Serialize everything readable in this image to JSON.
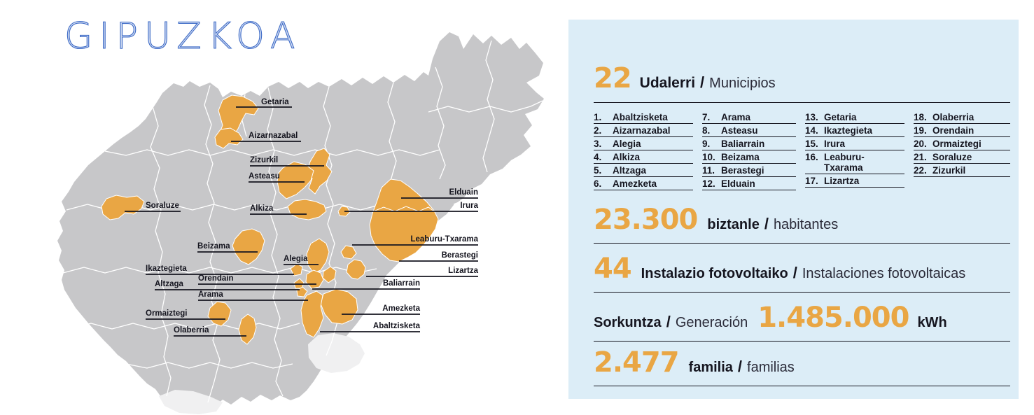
{
  "title": "GIPUZKOA",
  "colors": {
    "accent_orange": "#E9A644",
    "panel_blue": "#DCEDF7",
    "map_gray": "#C7C7C9",
    "map_light_gray": "#F0F0F1",
    "text_dark": "#15151F",
    "title_blue": "#3F6CC7"
  },
  "map": {
    "region_labels": [
      "Getaria",
      "Aizarnazabal",
      "Zizurkil",
      "Asteasu",
      "Soraluze",
      "Alkiza",
      "Beizama",
      "Elduain",
      "Irura",
      "Leaburu-Txarama",
      "Berastegi",
      "Lizartza",
      "Baliarrain",
      "Amezketa",
      "Abaltzisketa",
      "Alegia",
      "Ikaztegieta",
      "Orendain",
      "Altzaga",
      "Arama",
      "Ormaiztegi",
      "Olaberria"
    ]
  },
  "panel": {
    "slash": "/",
    "header": {
      "count": "22",
      "label_eu": "Udalerri",
      "label_es": "Municipios"
    },
    "municipalities": [
      {
        "num": "1.",
        "name": "Abaltzisketa"
      },
      {
        "num": "2.",
        "name": "Aizarnazabal"
      },
      {
        "num": "3.",
        "name": "Alegia"
      },
      {
        "num": "4.",
        "name": "Alkiza"
      },
      {
        "num": "5.",
        "name": "Altzaga"
      },
      {
        "num": "6.",
        "name": "Amezketa"
      },
      {
        "num": "7.",
        "name": "Arama"
      },
      {
        "num": "8.",
        "name": "Asteasu"
      },
      {
        "num": "9.",
        "name": "Baliarrain"
      },
      {
        "num": "10.",
        "name": "Beizama"
      },
      {
        "num": "11.",
        "name": "Berastegi"
      },
      {
        "num": "12.",
        "name": "Elduain"
      },
      {
        "num": "13.",
        "name": "Getaria"
      },
      {
        "num": "14.",
        "name": "Ikaztegieta"
      },
      {
        "num": "15.",
        "name": "Irura"
      },
      {
        "num": "16.",
        "name": "Leaburu-\nTxarama"
      },
      {
        "num": "17.",
        "name": "Lizartza"
      },
      {
        "num": "18.",
        "name": "Olaberria"
      },
      {
        "num": "19.",
        "name": "Orendain"
      },
      {
        "num": "20.",
        "name": "Ormaiztegi"
      },
      {
        "num": "21.",
        "name": "Soraluze"
      },
      {
        "num": "22.",
        "name": "Zizurkil"
      }
    ],
    "stats": [
      {
        "value": "23.300",
        "label_eu": "biztanle",
        "label_es": "habitantes"
      },
      {
        "value": "44",
        "label_eu": "Instalazio fotovoltaiko",
        "label_es": "Instalaciones fotovoltaicas"
      },
      {
        "value": "2.477",
        "label_eu": "familia",
        "label_es": "familias"
      }
    ],
    "generation": {
      "label_eu": "Sorkuntza",
      "label_es": "Generación",
      "value": "1.485.000",
      "unit": "kWh"
    }
  }
}
